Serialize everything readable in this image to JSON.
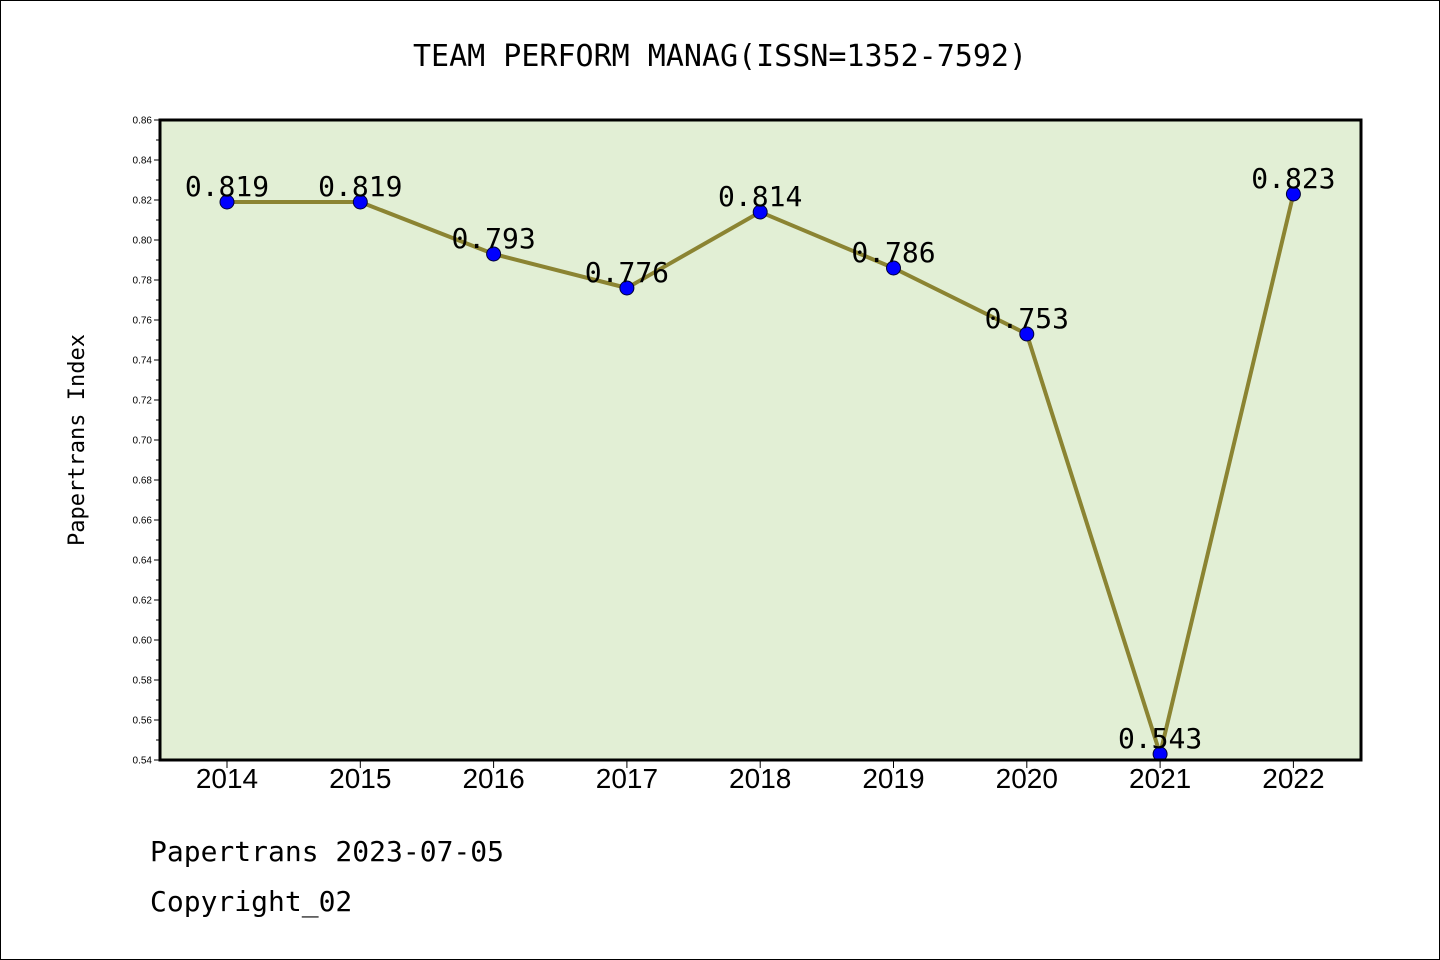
{
  "chart_data": {
    "type": "line",
    "title": "TEAM PERFORM MANAG(ISSN=1352-7592)",
    "ylabel": "Papertrans Index",
    "xlabel": "",
    "x": [
      "2014",
      "2015",
      "2016",
      "2017",
      "2018",
      "2019",
      "2020",
      "2021",
      "2022"
    ],
    "values": [
      0.819,
      0.819,
      0.793,
      0.776,
      0.814,
      0.786,
      0.753,
      0.543,
      0.823
    ],
    "data_labels": [
      "0.819",
      "0.819",
      "0.793",
      "0.776",
      "0.814",
      "0.786",
      "0.753",
      "0.543",
      "0.823"
    ],
    "ylim": [
      0.54,
      0.86
    ],
    "yticks": [
      "0.54",
      "0.56",
      "0.58",
      "0.60",
      "0.62",
      "0.64",
      "0.66",
      "0.68",
      "0.70",
      "0.72",
      "0.74",
      "0.76",
      "0.78",
      "0.80",
      "0.82",
      "0.84",
      "0.86"
    ],
    "grid": false,
    "colors": {
      "plot_background": "#e2efd5",
      "line": "#8b8432",
      "marker": "#0000ff"
    }
  },
  "footer": {
    "line1": "Papertrans 2023-07-05",
    "line2": "Copyright_02"
  }
}
